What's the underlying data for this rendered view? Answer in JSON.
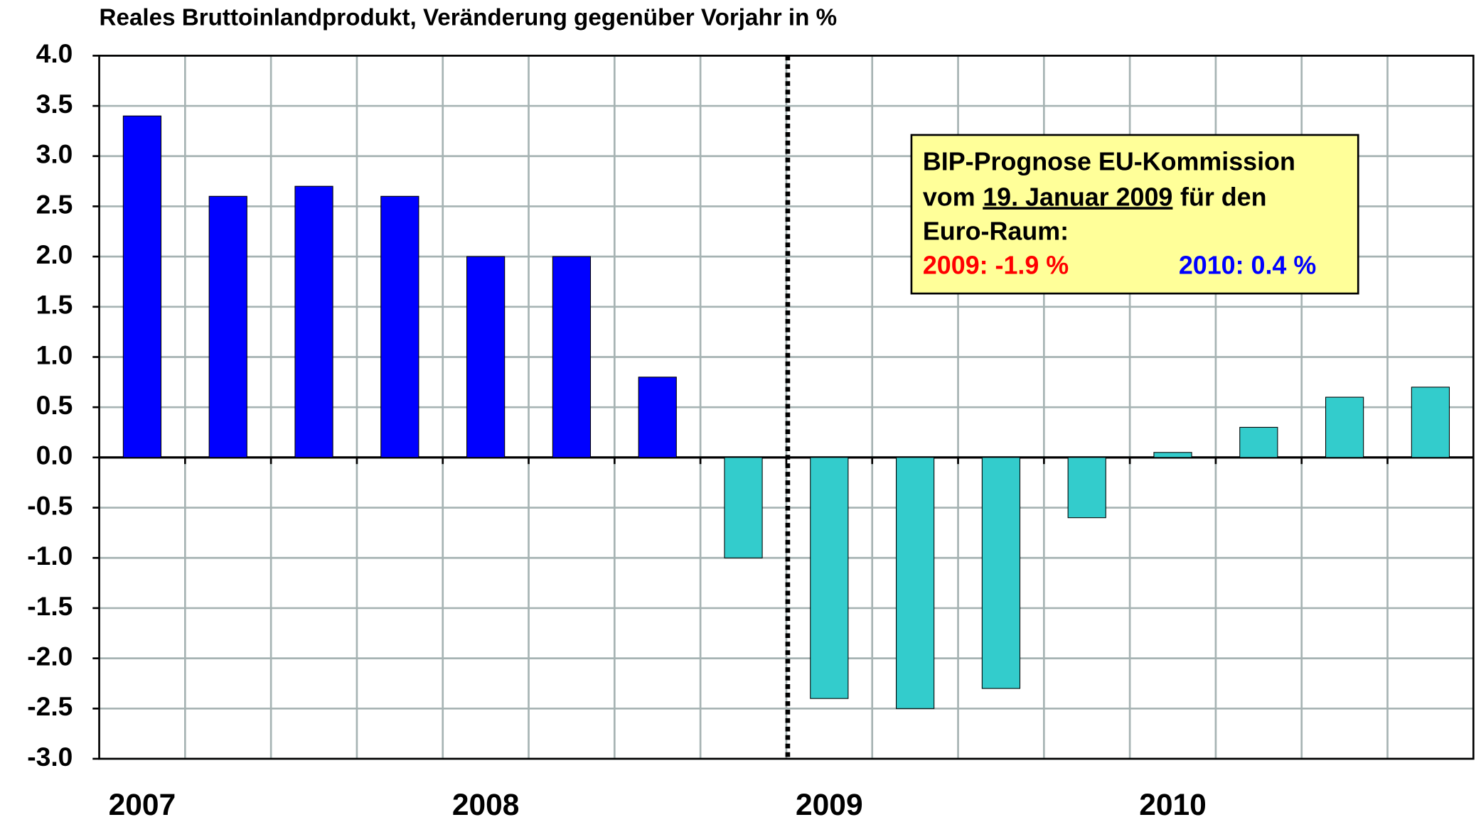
{
  "chart_data": {
    "type": "bar",
    "title": "Reales Bruttoinlandprodukt, Veränderung gegenüber Vorjahr in %",
    "categories": [
      "2007",
      null,
      null,
      null,
      "2008",
      null,
      null,
      null,
      "2009",
      null,
      null,
      null,
      "2010",
      null,
      null,
      null
    ],
    "values": [
      3.4,
      2.6,
      2.7,
      2.6,
      2.0,
      2.0,
      0.8,
      -1.0,
      -2.4,
      -2.5,
      -2.3,
      -0.6,
      0.05,
      0.3,
      0.6,
      0.7
    ],
    "colors": [
      "#0000ff",
      "#0000ff",
      "#0000ff",
      "#0000ff",
      "#0000ff",
      "#0000ff",
      "#0000ff",
      "#33cccc",
      "#33cccc",
      "#33cccc",
      "#33cccc",
      "#33cccc",
      "#33cccc",
      "#33cccc",
      "#33cccc",
      "#33cccc"
    ],
    "ylim": [
      -3.0,
      4.0
    ],
    "yticks": [
      {
        "value": -3.0,
        "label": "-3.0"
      },
      {
        "value": -2.5,
        "label": "-2.5"
      },
      {
        "value": -2.0,
        "label": "-2.0"
      },
      {
        "value": -1.5,
        "label": "-1.5"
      },
      {
        "value": -1.0,
        "label": "-1.0"
      },
      {
        "value": -0.5,
        "label": "-0.5"
      },
      {
        "value": 0,
        "label": "0.0"
      },
      {
        "value": 0.5,
        "label": "0.5"
      },
      {
        "value": 1.0,
        "label": "1.0"
      },
      {
        "value": 1.5,
        "label": "1.5"
      },
      {
        "value": 2.0,
        "label": "2.0"
      },
      {
        "value": 2.5,
        "label": "2.5"
      },
      {
        "value": 3.0,
        "label": "3.0"
      },
      {
        "value": 3.5,
        "label": "3.5"
      },
      {
        "value": 4.0,
        "label": "4.0"
      }
    ],
    "grid": true,
    "annotation": {
      "line1": "BIP-Prognose EU-Kommission",
      "line2a": "vom",
      "line2b": "19. Januar 2009",
      "line2c": "für den",
      "line3": "Euro-Raum:",
      "forecast2009": "2009: -1.9 %",
      "forecast2010": "2010: 0.4 %"
    }
  }
}
